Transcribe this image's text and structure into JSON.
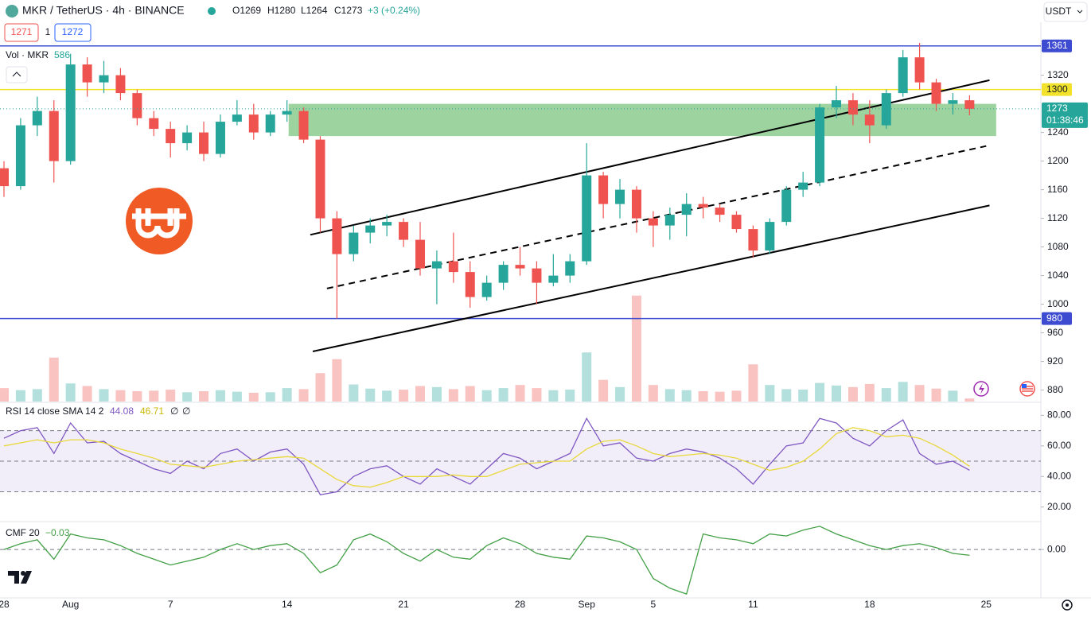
{
  "header": {
    "symbol": "MKR / TetherUS · 4h · BINANCE",
    "open": "O1269",
    "high": "H1280",
    "low": "L1264",
    "close": "C1273",
    "change": "+3 (+0.24%)",
    "currency": "USDT"
  },
  "order_panel": {
    "sell": "1271",
    "quantity": "1",
    "buy": "1272"
  },
  "chart_data": [
    {
      "type": "candlestick",
      "categories": [
        "28",
        null,
        null,
        null,
        "Aug",
        null,
        null,
        null,
        null,
        null,
        "7",
        null,
        null,
        null,
        null,
        null,
        null,
        "14",
        null,
        null,
        null,
        null,
        null,
        null,
        "21",
        null,
        null,
        null,
        null,
        null,
        null,
        "28",
        null,
        null,
        null,
        "Sep",
        null,
        null,
        null,
        "5",
        null,
        null,
        null,
        null,
        null,
        "11",
        null,
        null,
        null,
        null,
        null,
        null,
        "18",
        null,
        null,
        null,
        null,
        null,
        null,
        "25"
      ],
      "open": [
        1190,
        1165,
        1250,
        1270,
        1200,
        1335,
        1310,
        1320,
        1295,
        1260,
        1245,
        1225,
        1240,
        1210,
        1255,
        1265,
        1240,
        1265,
        1270,
        1230,
        1120,
        1070,
        1100,
        1110,
        1115,
        1090,
        1050,
        1060,
        1045,
        1010,
        1030,
        1055,
        1050,
        1030,
        1040,
        1060,
        1180,
        1140,
        1160,
        1120,
        1110,
        1125,
        1140,
        1135,
        1125,
        1105,
        1075,
        1115,
        1160,
        1170,
        1275,
        1285,
        1265,
        1250,
        1295,
        1345,
        1310,
        1280,
        1285,
        null
      ],
      "high": [
        1200,
        1260,
        1290,
        1285,
        1350,
        1345,
        1340,
        1330,
        1300,
        1270,
        1255,
        1250,
        1255,
        1265,
        1285,
        1280,
        1270,
        1285,
        1275,
        1235,
        1130,
        1110,
        1120,
        1125,
        1120,
        1115,
        1075,
        1100,
        1060,
        1040,
        1060,
        1080,
        1060,
        1070,
        1070,
        1225,
        1185,
        1175,
        1165,
        1130,
        1135,
        1155,
        1150,
        1140,
        1130,
        1110,
        1120,
        1165,
        1185,
        1280,
        1305,
        1295,
        1285,
        1300,
        1355,
        1365,
        1315,
        1295,
        1292,
        null
      ],
      "low": [
        1150,
        1160,
        1235,
        1170,
        1195,
        1290,
        1295,
        1285,
        1250,
        1235,
        1205,
        1215,
        1200,
        1205,
        1250,
        1230,
        1235,
        1255,
        1225,
        1100,
        980,
        1060,
        1085,
        1095,
        1080,
        1040,
        1000,
        1030,
        995,
        1005,
        1020,
        1040,
        1000,
        1025,
        1030,
        1055,
        1120,
        1120,
        1100,
        1080,
        1090,
        1095,
        1120,
        1115,
        1100,
        1065,
        1070,
        1110,
        1150,
        1165,
        1260,
        1250,
        1225,
        1245,
        1290,
        1300,
        1270,
        1265,
        1264,
        null
      ],
      "close": [
        1165,
        1250,
        1270,
        1200,
        1335,
        1310,
        1320,
        1295,
        1260,
        1245,
        1225,
        1240,
        1210,
        1255,
        1265,
        1240,
        1265,
        1270,
        1230,
        1120,
        1070,
        1100,
        1110,
        1115,
        1090,
        1050,
        1060,
        1045,
        1010,
        1030,
        1055,
        1050,
        1030,
        1040,
        1060,
        1180,
        1140,
        1160,
        1120,
        1110,
        1125,
        1140,
        1135,
        1125,
        1105,
        1075,
        1115,
        1160,
        1170,
        1275,
        1285,
        1265,
        1250,
        1295,
        1345,
        1310,
        1280,
        1285,
        1273,
        null
      ],
      "up_color": "#26a69a",
      "down_color": "#ef5350",
      "ylim": [
        864,
        1394
      ],
      "yticks": [
        1320,
        1240,
        1200,
        1160,
        1120,
        1080,
        1040,
        1000,
        960,
        920,
        880
      ],
      "volume": {
        "name": "Vol · MKR",
        "last_value": 586,
        "ylim": [
          0,
          22000
        ],
        "values": [
          2600,
          2200,
          2400,
          8500,
          3500,
          3000,
          2400,
          2200,
          2000,
          2100,
          2300,
          1800,
          2000,
          2200,
          1900,
          1700,
          1800,
          2600,
          2400,
          5500,
          8200,
          3300,
          2500,
          2100,
          2300,
          3000,
          2800,
          2400,
          3000,
          2200,
          2600,
          3200,
          2600,
          2200,
          2300,
          9500,
          4200,
          2800,
          20500,
          3200,
          2400,
          2200,
          2000,
          1900,
          2100,
          7200,
          3200,
          2400,
          2300,
          3600,
          3100,
          2800,
          3400,
          2600,
          3800,
          3200,
          2500,
          2100,
          586,
          null
        ]
      },
      "levels": [
        {
          "value": 1361,
          "color": "#3d4bd1"
        },
        {
          "value": 1300,
          "color": "#f2e22b"
        },
        {
          "value": 980,
          "color": "#3d4bd1"
        }
      ],
      "last_price": {
        "value": 1273,
        "countdown": "01:38:46",
        "color": "#26a69a"
      },
      "zone": {
        "x": [
          17.1,
          59.6
        ],
        "y": [
          1235,
          1280
        ],
        "color": "#4caf50"
      },
      "trendlines": [
        {
          "x": [
            18.4,
            59.2
          ],
          "y": [
            1097,
            1313
          ],
          "dashed": false
        },
        {
          "x": [
            19.4,
            59.0
          ],
          "y": [
            1022,
            1221
          ],
          "dashed": true
        },
        {
          "x": [
            18.55,
            59.2
          ],
          "y": [
            934,
            1138
          ],
          "dashed": false
        }
      ]
    },
    {
      "type": "line",
      "title": "RSI 14 close SMA 14 2",
      "series": [
        {
          "color": "#7e57c2",
          "values": [
            65,
            70,
            72,
            55,
            75,
            62,
            63,
            55,
            50,
            45,
            42,
            50,
            45,
            55,
            58,
            50,
            56,
            58,
            48,
            28,
            30,
            40,
            45,
            47,
            40,
            35,
            45,
            40,
            35,
            45,
            55,
            52,
            45,
            50,
            55,
            78,
            60,
            62,
            52,
            50,
            55,
            58,
            56,
            52,
            45,
            35,
            48,
            60,
            62,
            78,
            75,
            65,
            60,
            70,
            77,
            55,
            48,
            50,
            44.08,
            null
          ]
        },
        {
          "color": "#e8d839",
          "values": [
            60,
            62,
            64,
            62,
            64,
            64,
            62,
            58,
            55,
            52,
            48,
            47,
            46,
            48,
            50,
            51,
            52,
            53,
            52,
            45,
            38,
            34,
            33,
            36,
            40,
            40,
            40,
            41,
            40,
            40,
            44,
            48,
            49,
            50,
            50,
            58,
            63,
            64,
            60,
            55,
            53,
            54,
            55,
            54,
            52,
            48,
            44,
            46,
            50,
            58,
            68,
            72,
            70,
            66,
            67,
            65,
            60,
            54,
            46.71,
            null
          ]
        }
      ],
      "extra_labels": [
        "∅",
        "∅"
      ],
      "bands": [
        70,
        50,
        30
      ],
      "ylim": [
        11,
        88
      ],
      "yticks": [
        {
          "value": 80,
          "label": "80.00"
        },
        {
          "value": 60,
          "label": "60.00"
        },
        {
          "value": 40,
          "label": "40.00"
        },
        {
          "value": 20,
          "label": "20.00"
        }
      ]
    },
    {
      "type": "line",
      "title": "CMF 20",
      "series": [
        {
          "color": "#43a047",
          "value_label": "−0.03",
          "values": [
            0.0,
            0.03,
            0.05,
            -0.05,
            0.08,
            0.06,
            0.05,
            0.02,
            -0.02,
            -0.05,
            -0.08,
            -0.06,
            -0.04,
            0.0,
            0.03,
            0.0,
            0.02,
            0.03,
            -0.02,
            -0.12,
            -0.08,
            0.05,
            0.08,
            0.04,
            -0.02,
            -0.06,
            0.0,
            -0.04,
            -0.05,
            0.02,
            0.06,
            0.03,
            -0.02,
            -0.04,
            -0.05,
            0.07,
            0.06,
            0.04,
            0.0,
            -0.15,
            -0.2,
            -0.23,
            0.08,
            0.06,
            0.05,
            0.03,
            0.08,
            0.07,
            0.1,
            0.12,
            0.08,
            0.05,
            0.02,
            0.0,
            0.02,
            0.03,
            0.01,
            -0.02,
            -0.03,
            null
          ]
        }
      ],
      "ylim": [
        -0.25,
        0.14
      ],
      "yticks": [
        {
          "value": 0,
          "label": "0.00"
        }
      ]
    }
  ]
}
